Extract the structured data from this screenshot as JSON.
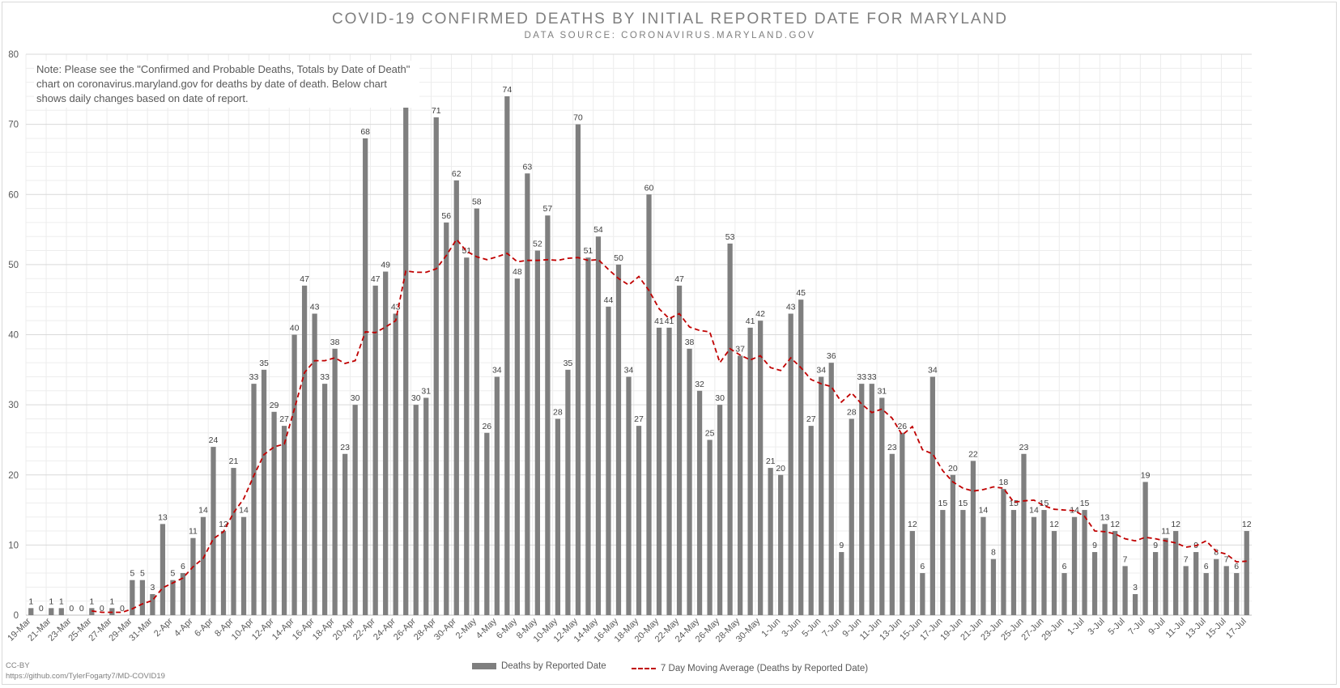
{
  "chart_data": {
    "type": "bar",
    "title": "COVID-19 CONFIRMED DEATHS BY INITIAL REPORTED DATE FOR MARYLAND",
    "subtitle": "DATA SOURCE: CORONAVIRUS.MARYLAND.GOV",
    "note_lines": [
      "Note: Please see the \"Confirmed and Probable Deaths, Totals by Date of Death\"",
      "chart on coronavirus.maryland.gov for deaths by date of death. Below chart",
      "shows daily changes based on date of report."
    ],
    "x_tick_labels": [
      "19-Mar",
      "21-Mar",
      "23-Mar",
      "25-Mar",
      "27-Mar",
      "29-Mar",
      "31-Mar",
      "2-Apr",
      "4-Apr",
      "6-Apr",
      "8-Apr",
      "10-Apr",
      "12-Apr",
      "14-Apr",
      "16-Apr",
      "18-Apr",
      "20-Apr",
      "22-Apr",
      "24-Apr",
      "26-Apr",
      "28-Apr",
      "30-Apr",
      "2-May",
      "4-May",
      "6-May",
      "8-May",
      "10-May",
      "12-May",
      "14-May",
      "16-May",
      "18-May",
      "20-May",
      "22-May",
      "24-May",
      "26-May",
      "28-May",
      "30-May",
      "1-Jun",
      "3-Jun",
      "5-Jun",
      "7-Jun",
      "9-Jun",
      "11-Jun",
      "13-Jun",
      "15-Jun",
      "17-Jun",
      "19-Jun",
      "21-Jun",
      "23-Jun",
      "25-Jun",
      "27-Jun",
      "29-Jun",
      "1-Jul",
      "3-Jul",
      "5-Jul",
      "7-Jul",
      "9-Jul",
      "11-Jul",
      "13-Jul",
      "15-Jul",
      "17-Jul"
    ],
    "ylim": [
      0,
      80
    ],
    "y_ticks": [
      0,
      10,
      20,
      30,
      40,
      50,
      60,
      70,
      80
    ],
    "grid": true,
    "legend_position": "bottom",
    "colors": {
      "bars": "#7f7f7f",
      "line": "#c00000",
      "grid": "#d9d9d9"
    },
    "series": [
      {
        "name": "Deaths by Reported Date",
        "type": "bar",
        "values": [
          1,
          0,
          1,
          1,
          0,
          0,
          1,
          0,
          1,
          0,
          5,
          5,
          3,
          13,
          5,
          6,
          11,
          14,
          24,
          12,
          21,
          14,
          33,
          35,
          29,
          27,
          40,
          47,
          43,
          33,
          38,
          23,
          30,
          68,
          47,
          49,
          43,
          74,
          30,
          31,
          71,
          56,
          62,
          51,
          58,
          26,
          34,
          74,
          48,
          63,
          52,
          57,
          28,
          35,
          70,
          51,
          54,
          44,
          50,
          34,
          27,
          60,
          41,
          41,
          47,
          38,
          32,
          25,
          30,
          53,
          37,
          41,
          42,
          21,
          20,
          43,
          45,
          27,
          34,
          36,
          9,
          28,
          33,
          33,
          31,
          23,
          26,
          12,
          6,
          34,
          15,
          20,
          15,
          22,
          14,
          8,
          18,
          15,
          23,
          14,
          15,
          12,
          6,
          14,
          15,
          9,
          13,
          12,
          7,
          3,
          19,
          9,
          11,
          12,
          7,
          9,
          6,
          8,
          7,
          6,
          12
        ]
      },
      {
        "name": "7 Day Moving Average (Deaths by Reported Date)",
        "type": "line",
        "values": [
          null,
          null,
          null,
          null,
          null,
          null,
          0.6,
          0.4,
          0.4,
          0.4,
          0.9,
          1.6,
          2.1,
          3.9,
          4.6,
          5.3,
          6.9,
          8.1,
          10.9,
          11.9,
          14.6,
          16.6,
          19.9,
          22.9,
          24.0,
          24.4,
          29.4,
          34.6,
          36.3,
          36.3,
          36.7,
          35.9,
          36.3,
          40.4,
          40.3,
          41.1,
          42.0,
          49.1,
          48.9,
          48.9,
          49.4,
          51.3,
          53.6,
          51.9,
          51.1,
          50.7,
          51.1,
          51.6,
          50.4,
          50.6,
          50.6,
          50.7,
          50.6,
          50.9,
          51.0,
          50.6,
          50.7,
          49.3,
          48.0,
          47.1,
          48.3,
          46.3,
          43.7,
          42.3,
          43.0,
          41.1,
          40.6,
          40.4,
          36.0,
          38.0,
          37.1,
          36.4,
          37.0,
          35.3,
          34.9,
          36.7,
          35.3,
          33.6,
          33.0,
          32.6,
          30.4,
          31.7,
          30.1,
          28.9,
          29.4,
          28.1,
          25.7,
          26.9,
          23.6,
          23.0,
          20.6,
          19.0,
          18.1,
          17.7,
          17.9,
          18.3,
          18.1,
          16.1,
          16.3,
          16.4,
          15.6,
          15.1,
          15.0,
          14.9,
          14.1,
          12.0,
          11.9,
          11.6,
          10.9,
          10.6,
          11.1,
          10.9,
          10.6,
          10.3,
          9.7,
          9.9,
          10.6,
          9.1,
          8.7,
          7.6,
          7.7
        ]
      }
    ]
  },
  "credit": {
    "line1": "CC-BY",
    "line2": "https://github.com/TylerFogarty7/MD-COVID19"
  }
}
